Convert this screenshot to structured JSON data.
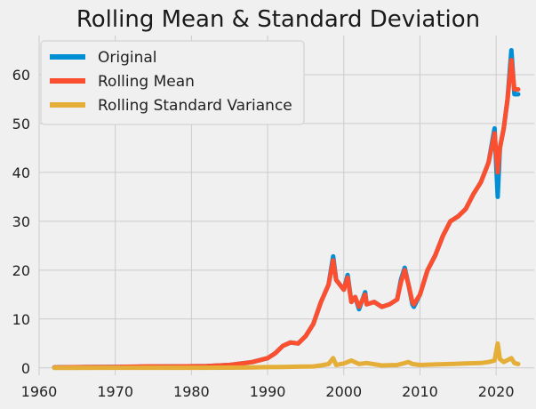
{
  "chart_data": {
    "type": "line",
    "title": "Rolling Mean & Standard Deviation",
    "xlabel": "",
    "ylabel": "",
    "xlim": [
      1960,
      2025
    ],
    "ylim": [
      -1.5,
      68
    ],
    "x_ticks": [
      "1960",
      "1970",
      "1980",
      "1990",
      "2000",
      "2010",
      "2020"
    ],
    "y_ticks": [
      "0",
      "10",
      "20",
      "30",
      "40",
      "50",
      "60"
    ],
    "grid": true,
    "legend_position": "top-left",
    "series": [
      {
        "name": "Original",
        "color": "#008fd5",
        "x": [
          1962,
          1966,
          1970,
          1974,
          1978,
          1982,
          1985,
          1987,
          1988,
          1990,
          1991,
          1992,
          1993,
          1994,
          1995,
          1996,
          1997,
          1998,
          1998.6,
          1999,
          2000,
          2000.5,
          2001,
          2001.5,
          2002,
          2002.8,
          2003,
          2004,
          2005,
          2006,
          2007,
          2007.5,
          2008,
          2008.5,
          2009,
          2009.2,
          2010,
          2011,
          2012,
          2013,
          2014,
          2015,
          2016,
          2017,
          2018,
          2019,
          2019.8,
          2020.2,
          2020.5,
          2021,
          2021.5,
          2022,
          2022.4,
          2022.9
        ],
        "values": [
          0.1,
          0.15,
          0.2,
          0.25,
          0.3,
          0.35,
          0.6,
          1.0,
          1.2,
          2.0,
          3.0,
          4.5,
          5.2,
          5.0,
          6.5,
          9.0,
          13.5,
          17.0,
          22.8,
          18.0,
          16.0,
          19.0,
          13.5,
          14.5,
          12.0,
          15.5,
          13.0,
          13.5,
          12.5,
          13.0,
          14.0,
          18.0,
          20.5,
          17.0,
          13.0,
          12.5,
          15.0,
          20.0,
          23.0,
          27.0,
          30.0,
          31.0,
          32.5,
          35.5,
          38.0,
          42.0,
          49.0,
          35.0,
          45.0,
          49.0,
          55.0,
          65.0,
          56.0,
          56.0
        ]
      },
      {
        "name": "Rolling Mean",
        "color": "#fc4f30",
        "x": [
          1962,
          1966,
          1970,
          1974,
          1978,
          1982,
          1985,
          1987,
          1988,
          1990,
          1991,
          1992,
          1993,
          1994,
          1995,
          1996,
          1997,
          1998,
          1998.6,
          1999,
          2000,
          2000.5,
          2001,
          2001.5,
          2002,
          2002.8,
          2003,
          2004,
          2005,
          2006,
          2007,
          2007.5,
          2008,
          2008.5,
          2009,
          2009.2,
          2010,
          2011,
          2012,
          2013,
          2014,
          2015,
          2016,
          2017,
          2018,
          2019,
          2019.8,
          2020.2,
          2020.5,
          2021,
          2021.5,
          2022,
          2022.4,
          2022.9
        ],
        "values": [
          0.1,
          0.15,
          0.2,
          0.3,
          0.3,
          0.35,
          0.6,
          1.0,
          1.2,
          2.0,
          3.0,
          4.5,
          5.2,
          5.0,
          6.5,
          9.0,
          13.5,
          17.0,
          22.0,
          18.0,
          16.0,
          18.5,
          13.5,
          14.5,
          12.5,
          15.0,
          13.0,
          13.5,
          12.5,
          13.0,
          14.0,
          17.5,
          20.0,
          17.0,
          13.5,
          13.0,
          15.0,
          20.0,
          23.0,
          27.0,
          30.0,
          31.0,
          32.5,
          35.5,
          38.0,
          42.0,
          48.0,
          40.0,
          45.0,
          49.0,
          55.0,
          63.0,
          57.0,
          57.0
        ]
      },
      {
        "name": "Rolling Standard Variance",
        "color": "#e5ae38",
        "x": [
          1962,
          1970,
          1975,
          1980,
          1985,
          1988,
          1990,
          1992,
          1994,
          1996,
          1997,
          1998,
          1998.6,
          1999,
          2000,
          2001,
          2002,
          2003,
          2005,
          2007,
          2008.5,
          2009,
          2010,
          2012,
          2014,
          2016,
          2018,
          2019,
          2019.8,
          2020.2,
          2020.5,
          2021,
          2022,
          2022.4,
          2022.9
        ],
        "values": [
          0.0,
          0.02,
          0.03,
          0.03,
          0.05,
          0.1,
          0.15,
          0.2,
          0.25,
          0.3,
          0.5,
          0.8,
          2.0,
          0.6,
          0.9,
          1.5,
          0.8,
          1.0,
          0.5,
          0.6,
          1.2,
          0.8,
          0.6,
          0.7,
          0.8,
          0.9,
          1.0,
          1.2,
          1.5,
          5.0,
          1.8,
          1.2,
          2.0,
          1.0,
          0.8
        ]
      }
    ]
  }
}
